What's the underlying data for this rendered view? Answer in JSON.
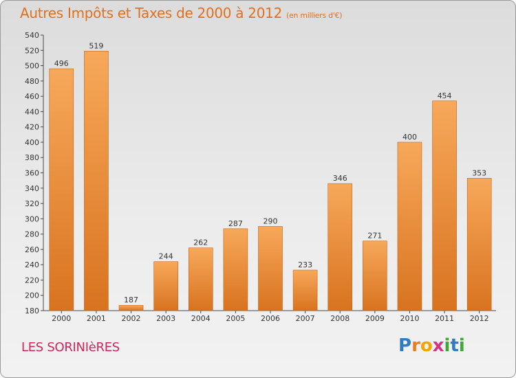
{
  "header": {
    "title": "Autres Impôts et Taxes de 2000 à 2012",
    "unit_note": "(en milliers d'€)"
  },
  "footer": {
    "commune": "LES SORINIèRES",
    "logo_letters": [
      "P",
      "r",
      "o",
      "x",
      "i",
      "t",
      "i"
    ]
  },
  "colors": {
    "title": "#e0701e",
    "commune": "#c8285a",
    "bar_light": "#f7a85a",
    "bar_dark": "#d8731f",
    "logo": [
      "#2f7cc1",
      "#e67e22",
      "#f0a500",
      "#d63384",
      "#3aa935",
      "#2f7cc1",
      "#3aa935"
    ]
  },
  "chart_data": {
    "type": "bar",
    "categories": [
      "2000",
      "2001",
      "2002",
      "2003",
      "2004",
      "2005",
      "2006",
      "2007",
      "2008",
      "2009",
      "2010",
      "2011",
      "2012"
    ],
    "values": [
      496,
      519,
      187,
      244,
      262,
      287,
      290,
      233,
      346,
      271,
      400,
      454,
      353
    ],
    "ylim": [
      180,
      540
    ],
    "ytick_step": 20,
    "grid": false,
    "data_labels": true
  }
}
